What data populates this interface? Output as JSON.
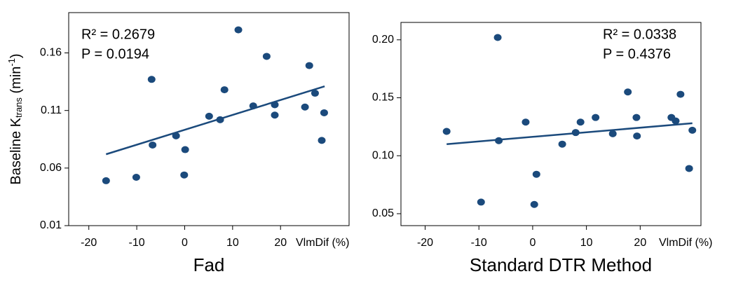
{
  "chart_data": [
    {
      "type": "scatter",
      "title": "Fad",
      "xlabel": "VlmDif (%)",
      "ylabel": {
        "text": "Baseline K",
        "sub": "trans",
        "unit": " (min",
        "exp": "-1",
        "close": ")"
      },
      "annotations": [
        "R² = 0.2679",
        "P = 0.0194"
      ],
      "color": "#1b4a7c",
      "x": [
        -16.4,
        -10.1,
        -6.9,
        -6.7,
        -1.8,
        0.1,
        -0.1,
        5.1,
        7.4,
        8.3,
        11.2,
        14.3,
        17.1,
        18.8,
        18.8,
        25.1,
        26.0,
        27.2,
        28.6,
        29.1
      ],
      "values": [
        0.049,
        0.052,
        0.137,
        0.08,
        0.088,
        0.076,
        0.054,
        0.105,
        0.102,
        0.128,
        0.18,
        0.114,
        0.157,
        0.115,
        0.106,
        0.113,
        0.149,
        0.125,
        0.084,
        0.108
      ],
      "fit_line": {
        "x": [
          -16.4,
          29.2
        ],
        "values": [
          0.072,
          0.131
        ]
      },
      "xlim": [
        -24.2,
        34.3
      ],
      "ylim": [
        0.01,
        0.195
      ],
      "xticks": [
        -20,
        -10,
        0,
        10,
        20
      ],
      "yticks": [
        0.01,
        0.06,
        0.11,
        0.16
      ]
    },
    {
      "type": "scatter",
      "title": "Standard DTR Method",
      "xlabel": "VlmDif (%)",
      "annotations": [
        "R² = 0.0338",
        "P = 0.4376"
      ],
      "color": "#1b4a7c",
      "x": [
        -16.0,
        -9.6,
        -6.5,
        -6.3,
        -1.3,
        0.7,
        0.3,
        5.5,
        8.0,
        8.9,
        11.7,
        14.9,
        17.7,
        19.3,
        19.4,
        25.8,
        26.6,
        27.5,
        29.1,
        29.7
      ],
      "values": [
        0.121,
        0.06,
        0.202,
        0.113,
        0.129,
        0.084,
        0.058,
        0.11,
        0.12,
        0.129,
        0.133,
        0.119,
        0.155,
        0.133,
        0.117,
        0.133,
        0.13,
        0.153,
        0.089,
        0.122
      ],
      "fit_line": {
        "x": [
          -16.0,
          29.7
        ],
        "values": [
          0.11,
          0.128
        ]
      },
      "xlim": [
        -24.5,
        31.3
      ],
      "ylim": [
        0.0397,
        0.215
      ],
      "xticks": [
        -20,
        -10,
        0,
        10,
        20
      ],
      "yticks": [
        {
          "value": 0.05,
          "label": "0.05"
        },
        {
          "value": 0.1,
          "label": "0.10"
        },
        0.15,
        {
          "value": 0.2,
          "label": "0.20"
        }
      ]
    }
  ]
}
